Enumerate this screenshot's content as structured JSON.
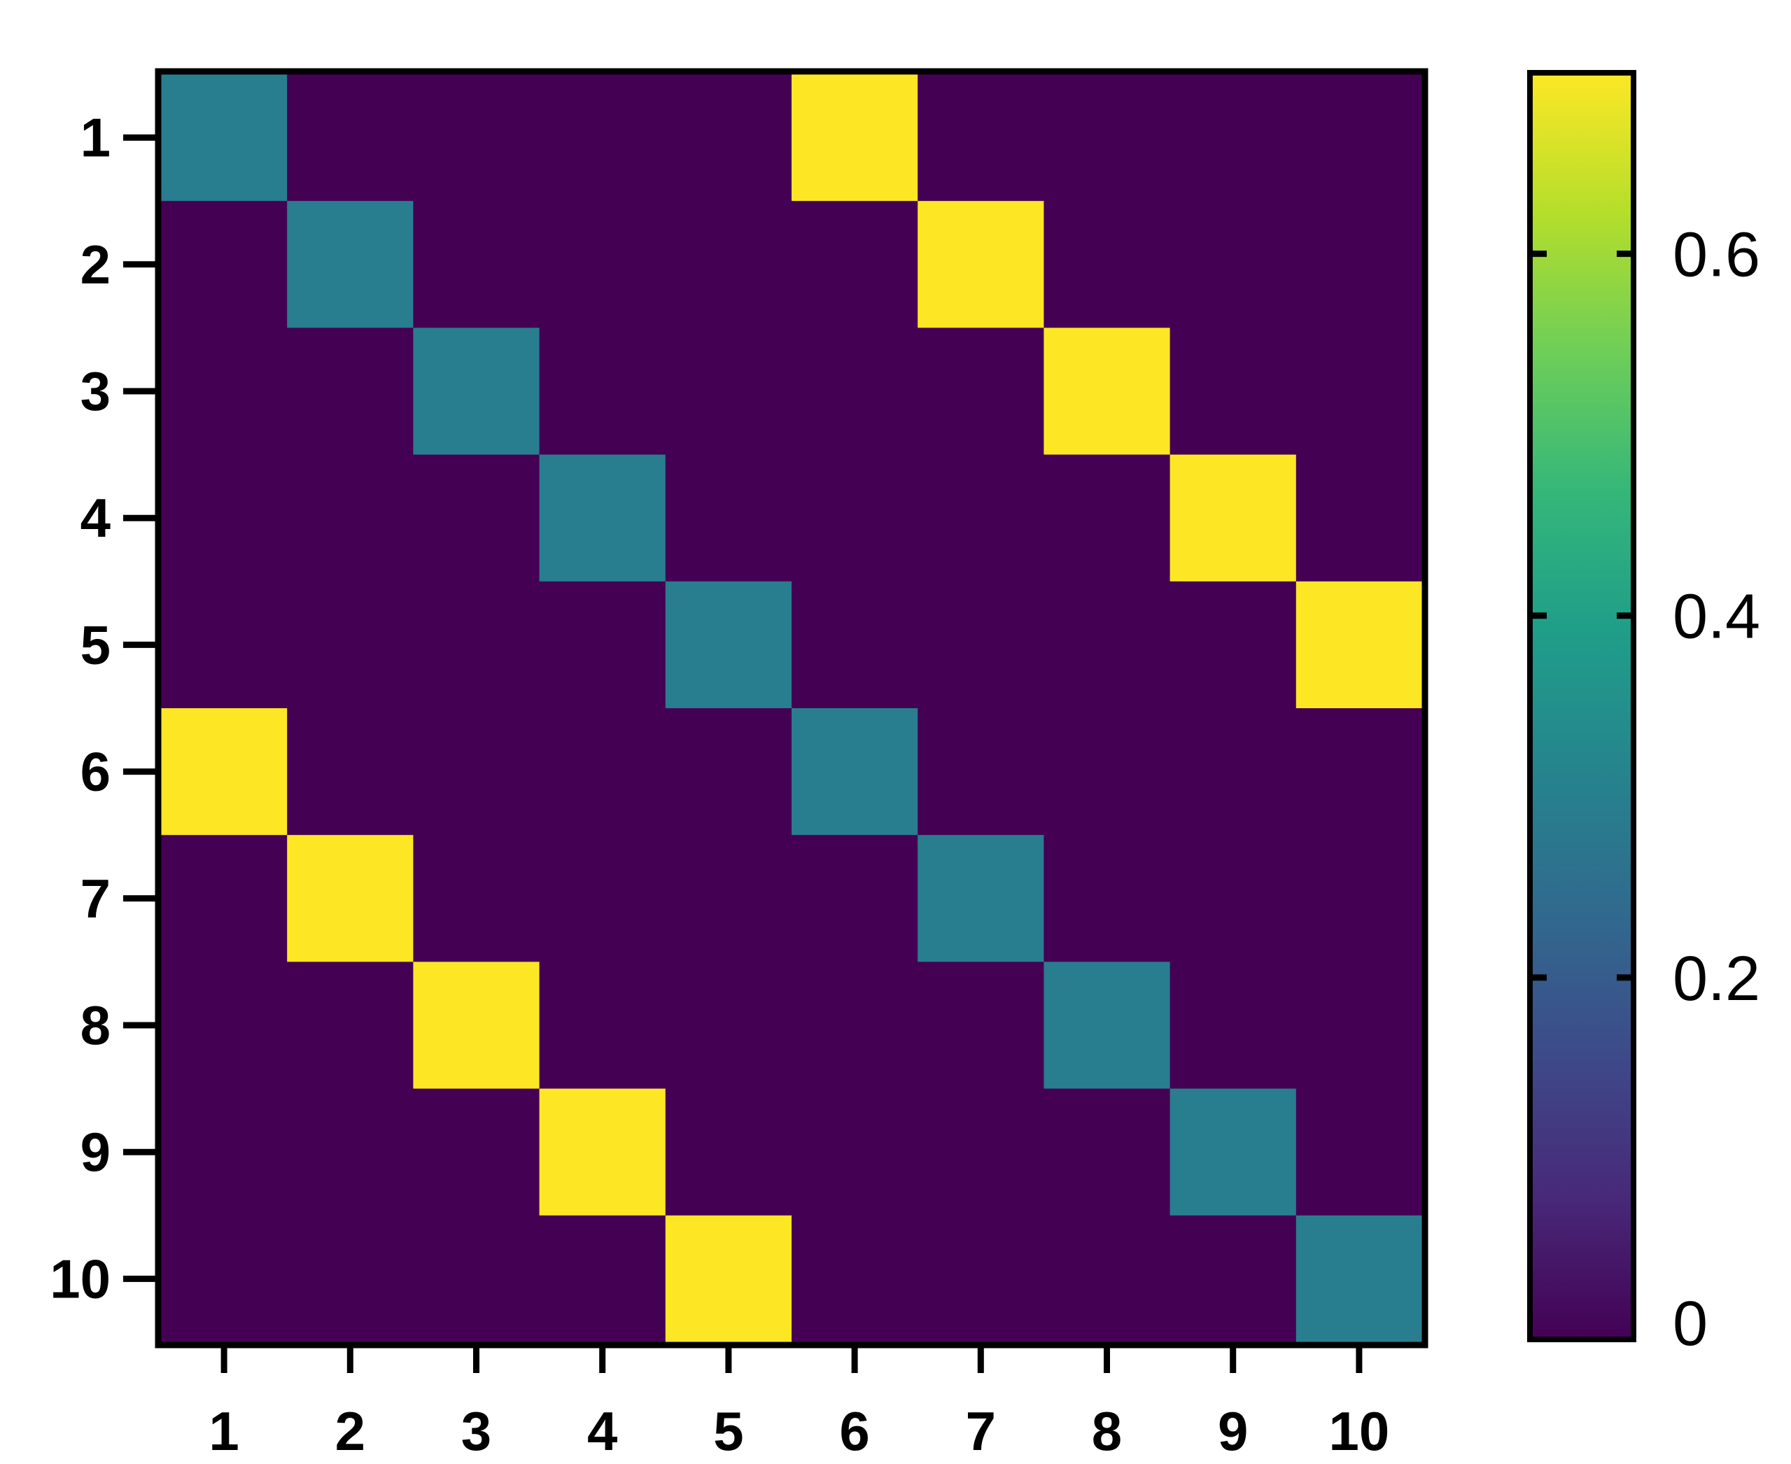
{
  "chart_data": {
    "type": "heatmap",
    "title": "",
    "xlabel": "",
    "ylabel": "",
    "x_categories": [
      "1",
      "2",
      "3",
      "4",
      "5",
      "6",
      "7",
      "8",
      "9",
      "10"
    ],
    "y_categories": [
      "1",
      "2",
      "3",
      "4",
      "5",
      "6",
      "7",
      "8",
      "9",
      "10"
    ],
    "values": [
      [
        0.3,
        0,
        0,
        0,
        0,
        0.7,
        0,
        0,
        0,
        0
      ],
      [
        0,
        0.3,
        0,
        0,
        0,
        0,
        0.7,
        0,
        0,
        0
      ],
      [
        0,
        0,
        0.3,
        0,
        0,
        0,
        0,
        0.7,
        0,
        0
      ],
      [
        0,
        0,
        0,
        0.3,
        0,
        0,
        0,
        0,
        0.7,
        0
      ],
      [
        0,
        0,
        0,
        0,
        0.3,
        0,
        0,
        0,
        0,
        0.7
      ],
      [
        0.7,
        0,
        0,
        0,
        0,
        0.3,
        0,
        0,
        0,
        0
      ],
      [
        0,
        0.7,
        0,
        0,
        0,
        0,
        0.3,
        0,
        0,
        0
      ],
      [
        0,
        0,
        0.7,
        0,
        0,
        0,
        0,
        0.3,
        0,
        0
      ],
      [
        0,
        0,
        0,
        0.7,
        0,
        0,
        0,
        0,
        0.3,
        0
      ],
      [
        0,
        0,
        0,
        0,
        0.7,
        0,
        0,
        0,
        0,
        0.3
      ]
    ],
    "colormap": "viridis",
    "colorbar": {
      "range": [
        0,
        0.7
      ],
      "ticks": [
        0,
        0.2,
        0.4,
        0.6
      ],
      "tick_labels": [
        "0",
        "0.2",
        "0.4",
        "0.6"
      ]
    },
    "grid": false,
    "legend": "colorbar-right"
  }
}
